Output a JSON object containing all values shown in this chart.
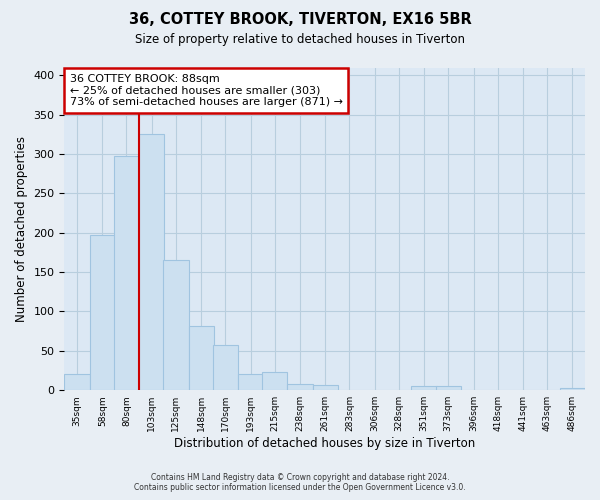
{
  "title": "36, COTTEY BROOK, TIVERTON, EX16 5BR",
  "subtitle": "Size of property relative to detached houses in Tiverton",
  "xlabel": "Distribution of detached houses by size in Tiverton",
  "ylabel": "Number of detached properties",
  "footer_line1": "Contains HM Land Registry data © Crown copyright and database right 2024.",
  "footer_line2": "Contains public sector information licensed under the Open Government Licence v3.0.",
  "bar_labels": [
    "35sqm",
    "58sqm",
    "80sqm",
    "103sqm",
    "125sqm",
    "148sqm",
    "170sqm",
    "193sqm",
    "215sqm",
    "238sqm",
    "261sqm",
    "283sqm",
    "306sqm",
    "328sqm",
    "351sqm",
    "373sqm",
    "396sqm",
    "418sqm",
    "441sqm",
    "463sqm",
    "486sqm"
  ],
  "bar_values": [
    20,
    197,
    298,
    325,
    166,
    82,
    57,
    21,
    23,
    8,
    6,
    0,
    0,
    0,
    5,
    5,
    0,
    0,
    0,
    0,
    3
  ],
  "bar_color": "#cce0f0",
  "bar_edge_color": "#a0c4e0",
  "property_line_x": 91.5,
  "annotation_line0": "36 COTTEY BROOK: 88sqm",
  "annotation_line1": "← 25% of detached houses are smaller (303)",
  "annotation_line2": "73% of semi-detached houses are larger (871) →",
  "annotation_box_color": "#ffffff",
  "annotation_box_edge": "#cc0000",
  "vline_color": "#cc0000",
  "ylim": [
    0,
    410
  ],
  "bin_width": 23,
  "background_color": "#e8eef4",
  "plot_bg_color": "#dce8f4"
}
